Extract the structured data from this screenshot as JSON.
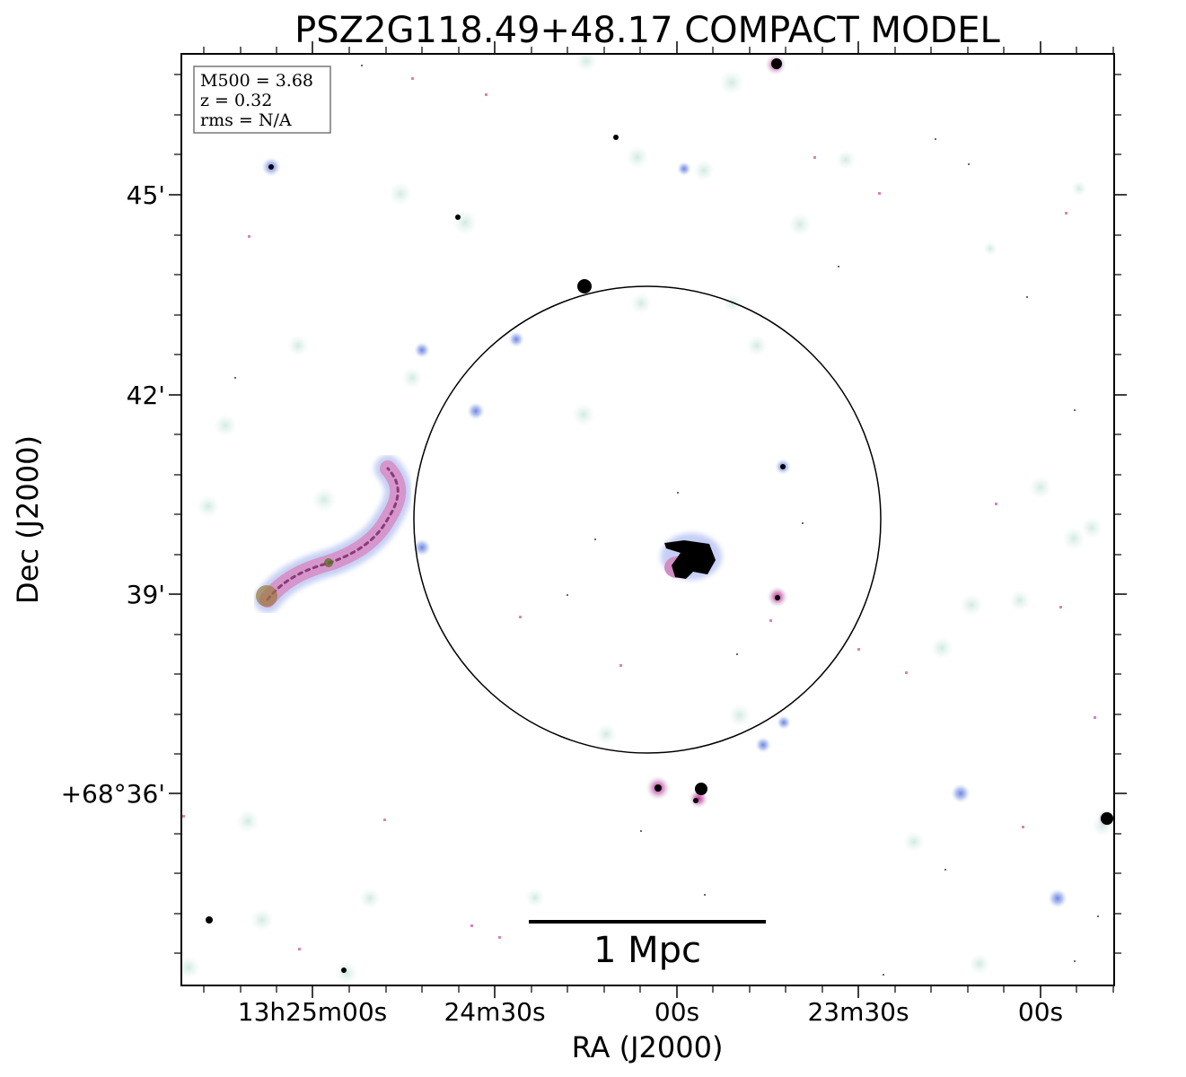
{
  "title": "PSZ2G118.49+48.17 COMPACT MODEL",
  "xlabel": "RA (J2000)",
  "ylabel": "Dec (J2000)",
  "x_ticks": [
    "13h25m00s",
    "24m30s",
    "00s",
    "23m30s",
    "00s"
  ],
  "y_ticks": [
    "45'",
    "42'",
    "39'",
    "+68°36'"
  ],
  "info_box": {
    "line1": "M500 = 3.68",
    "line2": "z = 0.32",
    "line3": "rms = N/A"
  },
  "scale_bar": {
    "label": "1 Mpc"
  },
  "colors": {
    "frame": "#000000",
    "background": "#ffffff",
    "halo": "#cfe9e2",
    "pink": "#d98fc8",
    "blue": "#a9b6ee",
    "core": "#000000"
  }
}
